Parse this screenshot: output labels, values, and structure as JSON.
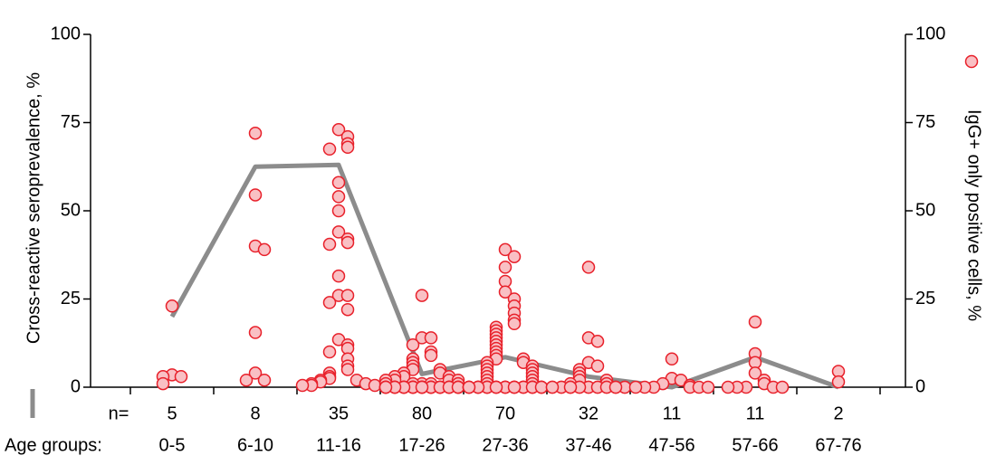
{
  "chart_data": {
    "type": "line",
    "categories": [
      "0-5",
      "6-10",
      "11-16",
      "17-26",
      "27-36",
      "37-46",
      "47-56",
      "57-66",
      "67-76"
    ],
    "x_label": "Age groups:",
    "n_label": "n=",
    "counts": [
      5,
      8,
      35,
      80,
      70,
      32,
      11,
      11,
      2
    ],
    "ylim": [
      0,
      100
    ],
    "yticks": [
      0,
      25,
      50,
      75,
      100
    ],
    "y2lim": [
      0,
      100
    ],
    "y2ticks": [
      0,
      25,
      50,
      75,
      100
    ],
    "series": [
      {
        "name": "Cross-reactive seroprevalence, %",
        "type": "line",
        "color": "#8c8c8c",
        "values": [
          20,
          62.5,
          63,
          3.75,
          8.5,
          3,
          0,
          8.5,
          0
        ]
      },
      {
        "name": "IgG+ only positive cells, %",
        "type": "scatter",
        "axis": "y2",
        "color": "#e8202a",
        "fill": "#f9c0c4",
        "values": [
          [
            23,
            3.5,
            3,
            3,
            1
          ],
          [
            72,
            54.5,
            40,
            39,
            15.5,
            4,
            2,
            2
          ],
          [
            73,
            71,
            69,
            68,
            67.5,
            58,
            54,
            50,
            44,
            42,
            41,
            40.5,
            31.5,
            26,
            26,
            24,
            22,
            13.5,
            12,
            11,
            10,
            8,
            6,
            5,
            4,
            3,
            2.5,
            2,
            2,
            1.5,
            1,
            1,
            0.5,
            0.5,
            0.5
          ],
          [
            26,
            14,
            14,
            12,
            10,
            9,
            8,
            7,
            6,
            5,
            5,
            4,
            4,
            3,
            3,
            3,
            2,
            2,
            2,
            2,
            1,
            1,
            1,
            1,
            1,
            0,
            0,
            0,
            0,
            0,
            0,
            0,
            0,
            0,
            0,
            0,
            0,
            0,
            0,
            0,
            0,
            0,
            0,
            0,
            0,
            0,
            0,
            0,
            0,
            0,
            0,
            0,
            0,
            0,
            0,
            0,
            0,
            0,
            0,
            0,
            0,
            0,
            0,
            0,
            0,
            0,
            0,
            0,
            0,
            0,
            0,
            0,
            0,
            0,
            0,
            0,
            0,
            0,
            0,
            0
          ],
          [
            39,
            37,
            34,
            30,
            27,
            25,
            23,
            21,
            19,
            18,
            17,
            16,
            15,
            14,
            13,
            12,
            11,
            10,
            9,
            8,
            8,
            7,
            7,
            6,
            6,
            5,
            5,
            4,
            4,
            3,
            3,
            2,
            2,
            1,
            1,
            0,
            0,
            0,
            0,
            0,
            0,
            0,
            0,
            0,
            0,
            0,
            0,
            0,
            0,
            0,
            0,
            0,
            0,
            0,
            0,
            0,
            0,
            0,
            0,
            0,
            0,
            0,
            0,
            0,
            0,
            0,
            0,
            0,
            0,
            0
          ],
          [
            34,
            14,
            13,
            7,
            6,
            5,
            4,
            3,
            2,
            2,
            1,
            1,
            0,
            0,
            0,
            0,
            0,
            0,
            0,
            0,
            0,
            0,
            0,
            0,
            0,
            0,
            0,
            0,
            0,
            0,
            0,
            0
          ],
          [
            8,
            2.5,
            2,
            1,
            0.5,
            0,
            0,
            0,
            0,
            0,
            0
          ],
          [
            18.5,
            9.5,
            7,
            4,
            2,
            1,
            0,
            0,
            0,
            0,
            0
          ],
          [
            4.5,
            1.5
          ]
        ]
      }
    ]
  }
}
